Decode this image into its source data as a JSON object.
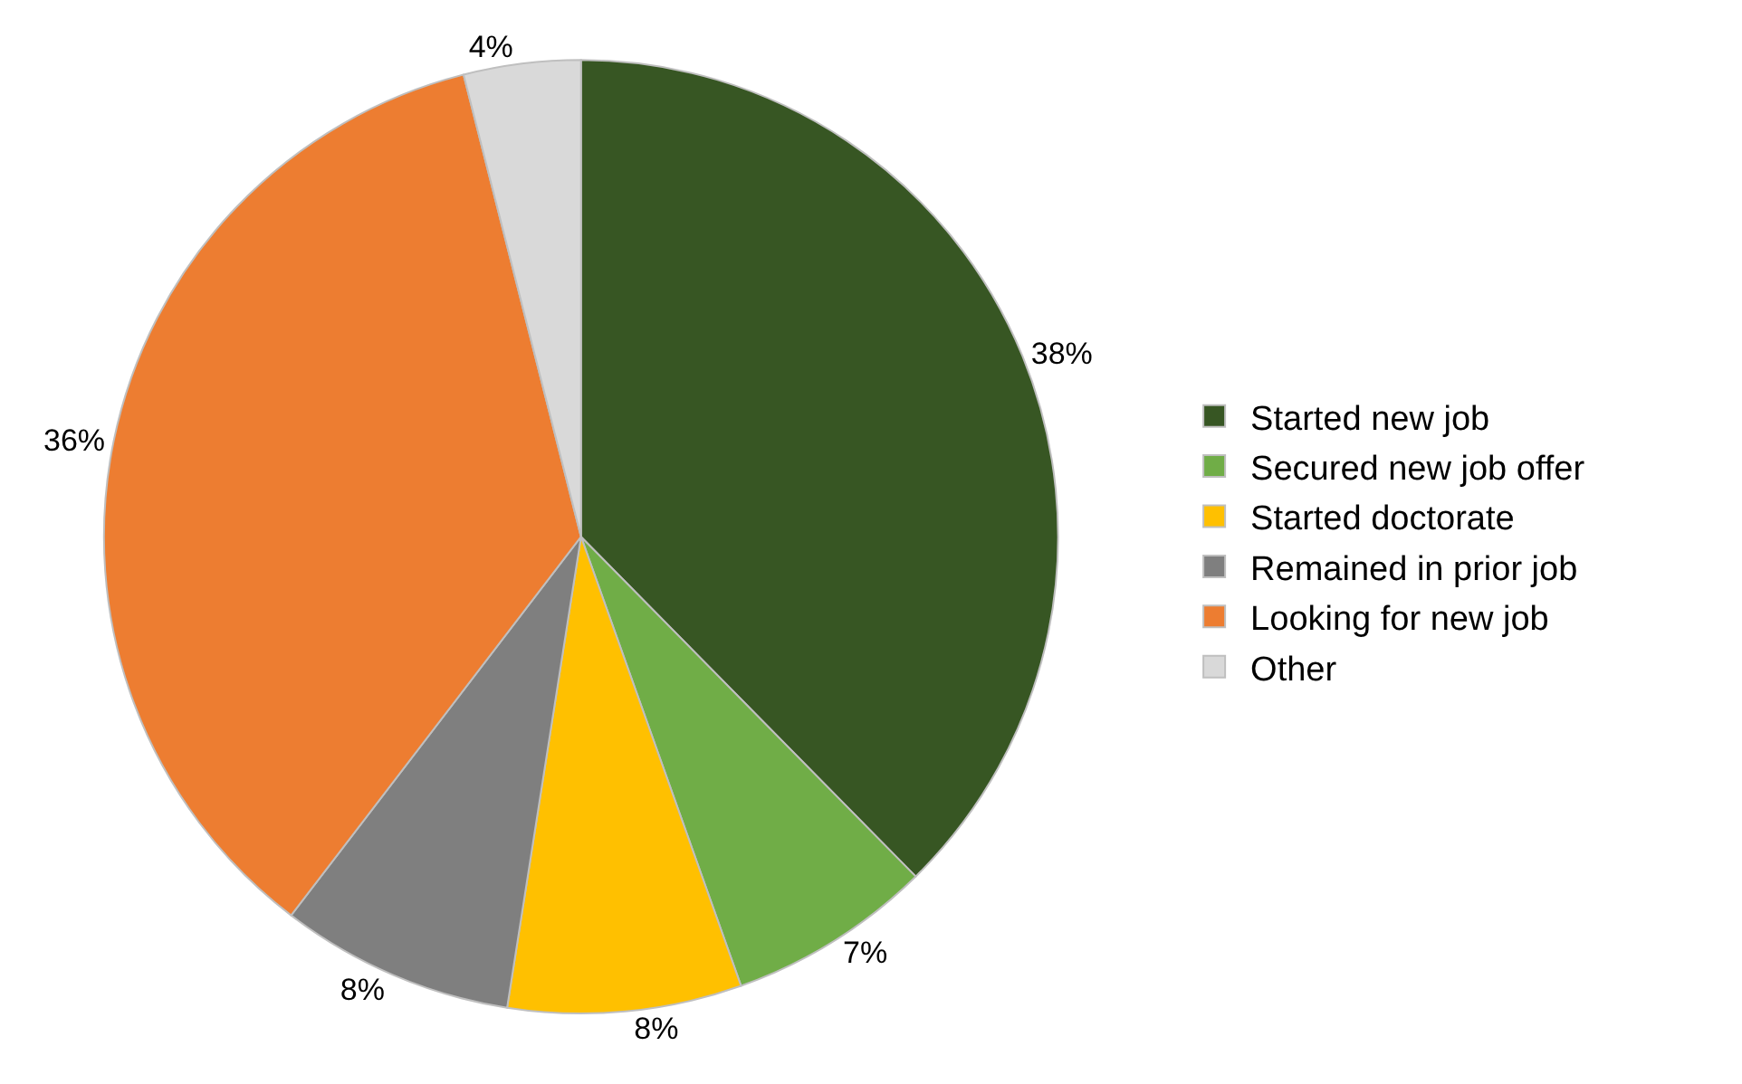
{
  "chart_data": {
    "type": "pie",
    "categories": [
      "Started new job",
      "Secured new job offer",
      "Started doctorate",
      "Remained in prior job",
      "Looking for new job",
      "Other"
    ],
    "values": [
      38,
      7,
      8,
      8,
      36,
      4
    ],
    "colors": [
      "#375623",
      "#70ad47",
      "#ffc000",
      "#7f7f7f",
      "#ed7d31",
      "#d9d9d9"
    ],
    "value_labels": [
      "38%",
      "7%",
      "8%",
      "8%",
      "36%",
      "4%"
    ],
    "legend": "right"
  }
}
